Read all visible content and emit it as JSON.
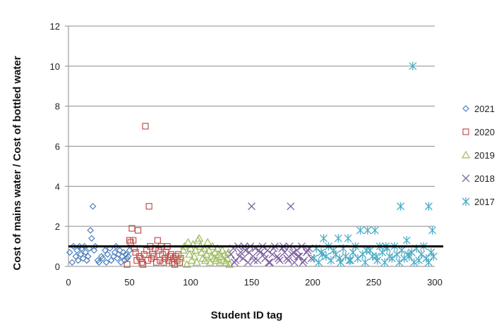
{
  "chart_data": {
    "type": "scatter",
    "title": "",
    "xlabel": "Student ID tag",
    "ylabel": "Cost of mains water / Cost of bottled water",
    "xlim": [
      0,
      300
    ],
    "ylim": [
      0,
      12
    ],
    "xticks": [
      0,
      50,
      100,
      150,
      200,
      250,
      300
    ],
    "yticks": [
      0,
      2,
      4,
      6,
      8,
      10,
      12
    ],
    "grid": "horizontal",
    "legend_position": "right",
    "reference_line": {
      "y": 1,
      "color": "#000000"
    },
    "series": [
      {
        "name": "2021",
        "marker": "diamond",
        "color": "#4F81BD",
        "x": [
          1,
          3,
          4,
          6,
          7,
          8,
          9,
          10,
          11,
          12,
          13,
          14,
          15,
          16,
          17,
          18,
          19,
          20,
          21,
          22,
          24,
          25,
          27,
          28,
          30,
          31,
          32,
          34,
          35,
          37,
          38,
          39,
          40,
          41,
          42,
          43,
          44,
          45,
          46,
          47,
          48,
          49,
          50
        ],
        "y": [
          0.7,
          0.2,
          1.0,
          0.5,
          0.8,
          0.3,
          1.0,
          0.6,
          0.9,
          0.4,
          1.0,
          0.7,
          0.3,
          0.5,
          0.9,
          1.8,
          1.4,
          3.0,
          0.8,
          1.0,
          0.3,
          0.2,
          0.5,
          0.4,
          0.8,
          0.2,
          0.6,
          0.9,
          0.3,
          0.5,
          0.7,
          1.0,
          0.4,
          0.6,
          0.8,
          0.2,
          0.5,
          0.7,
          0.3,
          0.6,
          0.4,
          0.5,
          0.8
        ]
      },
      {
        "name": "2020",
        "marker": "square",
        "color": "#C0504D",
        "x": [
          48,
          50,
          51,
          52,
          53,
          54,
          55,
          56,
          57,
          58,
          59,
          60,
          61,
          62,
          63,
          64,
          65,
          66,
          67,
          68,
          69,
          70,
          71,
          72,
          73,
          74,
          75,
          76,
          77,
          78,
          79,
          80,
          81,
          82,
          83,
          84,
          85,
          86,
          87,
          88,
          89,
          90,
          91,
          92
        ],
        "y": [
          0.1,
          1.3,
          1.2,
          1.9,
          1.3,
          0.9,
          0.7,
          0.3,
          1.8,
          0.5,
          0.4,
          0.2,
          0.1,
          0.6,
          7.0,
          0.8,
          0.3,
          3.0,
          1.0,
          0.4,
          0.6,
          0.5,
          0.9,
          0.2,
          1.3,
          0.8,
          0.3,
          1.0,
          0.6,
          0.2,
          0.4,
          0.7,
          1.0,
          0.3,
          0.5,
          0.6,
          0.2,
          0.4,
          0.1,
          0.5,
          0.3,
          0.6,
          0.2,
          0.4
        ]
      },
      {
        "name": "2019",
        "marker": "triangle",
        "color": "#9BBB59",
        "x": [
          92,
          94,
          95,
          97,
          98,
          99,
          100,
          101,
          102,
          103,
          104,
          105,
          106,
          107,
          108,
          109,
          110,
          111,
          112,
          113,
          114,
          115,
          116,
          117,
          118,
          119,
          120,
          121,
          122,
          123,
          124,
          125,
          126,
          127,
          128,
          129,
          130,
          131,
          132
        ],
        "y": [
          0.4,
          0.8,
          1.0,
          0.1,
          1.2,
          0.6,
          0.9,
          0.3,
          1.1,
          0.5,
          0.8,
          0.2,
          1.3,
          1.4,
          1.0,
          0.7,
          0.4,
          0.9,
          0.3,
          0.6,
          1.2,
          0.8,
          0.2,
          0.5,
          1.0,
          0.4,
          0.7,
          0.3,
          0.9,
          0.6,
          0.2,
          0.5,
          0.8,
          0.3,
          0.6,
          0.2,
          0.4,
          0.7,
          0.1
        ]
      },
      {
        "name": "2018",
        "marker": "x",
        "color": "#8064A2",
        "x": [
          133,
          135,
          137,
          139,
          141,
          143,
          145,
          147,
          149,
          151,
          153,
          155,
          157,
          159,
          161,
          163,
          165,
          167,
          169,
          171,
          173,
          175,
          177,
          179,
          181,
          183,
          185,
          187,
          189,
          191,
          193,
          195,
          197,
          199,
          136,
          140,
          144,
          148,
          152,
          156,
          160,
          164,
          168,
          172,
          176,
          180,
          184,
          188,
          192,
          196,
          150,
          182
        ],
        "y": [
          0.6,
          0.9,
          0.3,
          1.0,
          0.7,
          0.4,
          0.8,
          0.2,
          1.0,
          0.5,
          0.9,
          0.3,
          0.7,
          1.0,
          0.4,
          0.8,
          0.2,
          0.6,
          1.0,
          0.5,
          0.3,
          0.9,
          0.7,
          0.4,
          1.0,
          0.6,
          0.2,
          0.8,
          0.5,
          1.0,
          0.3,
          0.7,
          0.9,
          0.4,
          0.2,
          0.5,
          1.0,
          0.7,
          0.3,
          0.8,
          0.6,
          0.2,
          0.9,
          0.4,
          1.0,
          0.3,
          0.7,
          0.5,
          0.2,
          0.8,
          3.0,
          3.0
        ]
      },
      {
        "name": "2017",
        "marker": "asterisk",
        "color": "#4BACC6",
        "x": [
          201,
          203,
          205,
          207,
          209,
          211,
          213,
          215,
          217,
          219,
          221,
          223,
          225,
          227,
          229,
          231,
          233,
          235,
          237,
          239,
          241,
          243,
          245,
          247,
          249,
          251,
          253,
          255,
          257,
          259,
          261,
          263,
          265,
          267,
          269,
          271,
          273,
          275,
          277,
          279,
          281,
          283,
          285,
          287,
          289,
          291,
          293,
          295,
          297,
          299,
          208,
          222,
          230,
          244,
          252,
          260,
          278,
          298,
          272,
          295,
          282
        ],
        "y": [
          0.4,
          0.9,
          0.2,
          0.7,
          1.4,
          0.5,
          1.0,
          0.3,
          0.8,
          0.6,
          1.4,
          0.2,
          0.9,
          0.5,
          1.4,
          0.3,
          0.7,
          1.0,
          0.4,
          1.8,
          0.6,
          0.2,
          1.8,
          0.8,
          0.5,
          1.8,
          0.3,
          1.0,
          0.7,
          0.2,
          0.9,
          0.5,
          0.4,
          1.0,
          0.6,
          0.2,
          0.8,
          0.4,
          1.3,
          0.5,
          0.7,
          0.2,
          0.9,
          0.3,
          0.6,
          1.0,
          0.4,
          0.2,
          0.7,
          0.5,
          0.6,
          0.4,
          0.3,
          0.8,
          0.5,
          1.0,
          0.6,
          1.8,
          3.0,
          3.0,
          10.0
        ]
      }
    ]
  }
}
